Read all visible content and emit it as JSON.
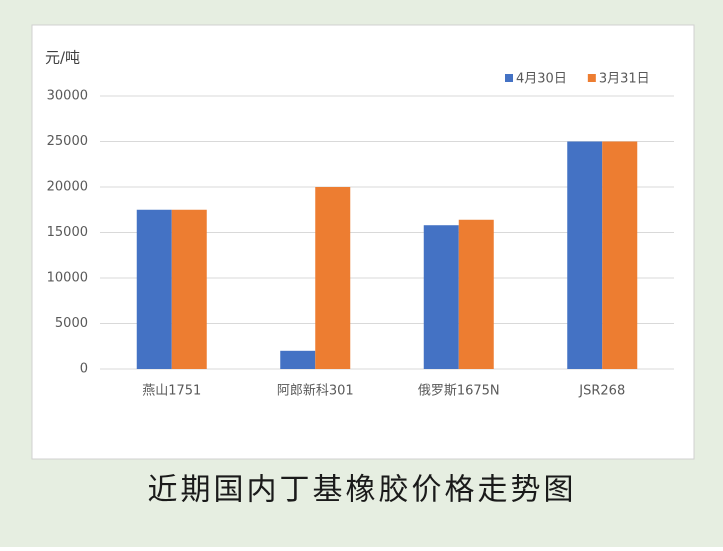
{
  "chart_data": {
    "type": "bar",
    "title": "近期国内丁基橡胶价格走势图",
    "y_label": "元/吨",
    "categories": [
      "燕山1751",
      "阿郎新科301",
      "俄罗斯1675N",
      "JSR268"
    ],
    "series": [
      {
        "name": "4月30日",
        "color": "#4472c4",
        "values": [
          17500,
          2000,
          15800,
          25000
        ]
      },
      {
        "name": "3月31日",
        "color": "#ed7d31",
        "values": [
          17500,
          20000,
          16400,
          25000
        ]
      }
    ],
    "ylim": [
      0,
      30000
    ],
    "yticks": [
      0,
      5000,
      10000,
      15000,
      20000,
      25000,
      30000
    ],
    "grid": true,
    "legend": "top-right"
  }
}
